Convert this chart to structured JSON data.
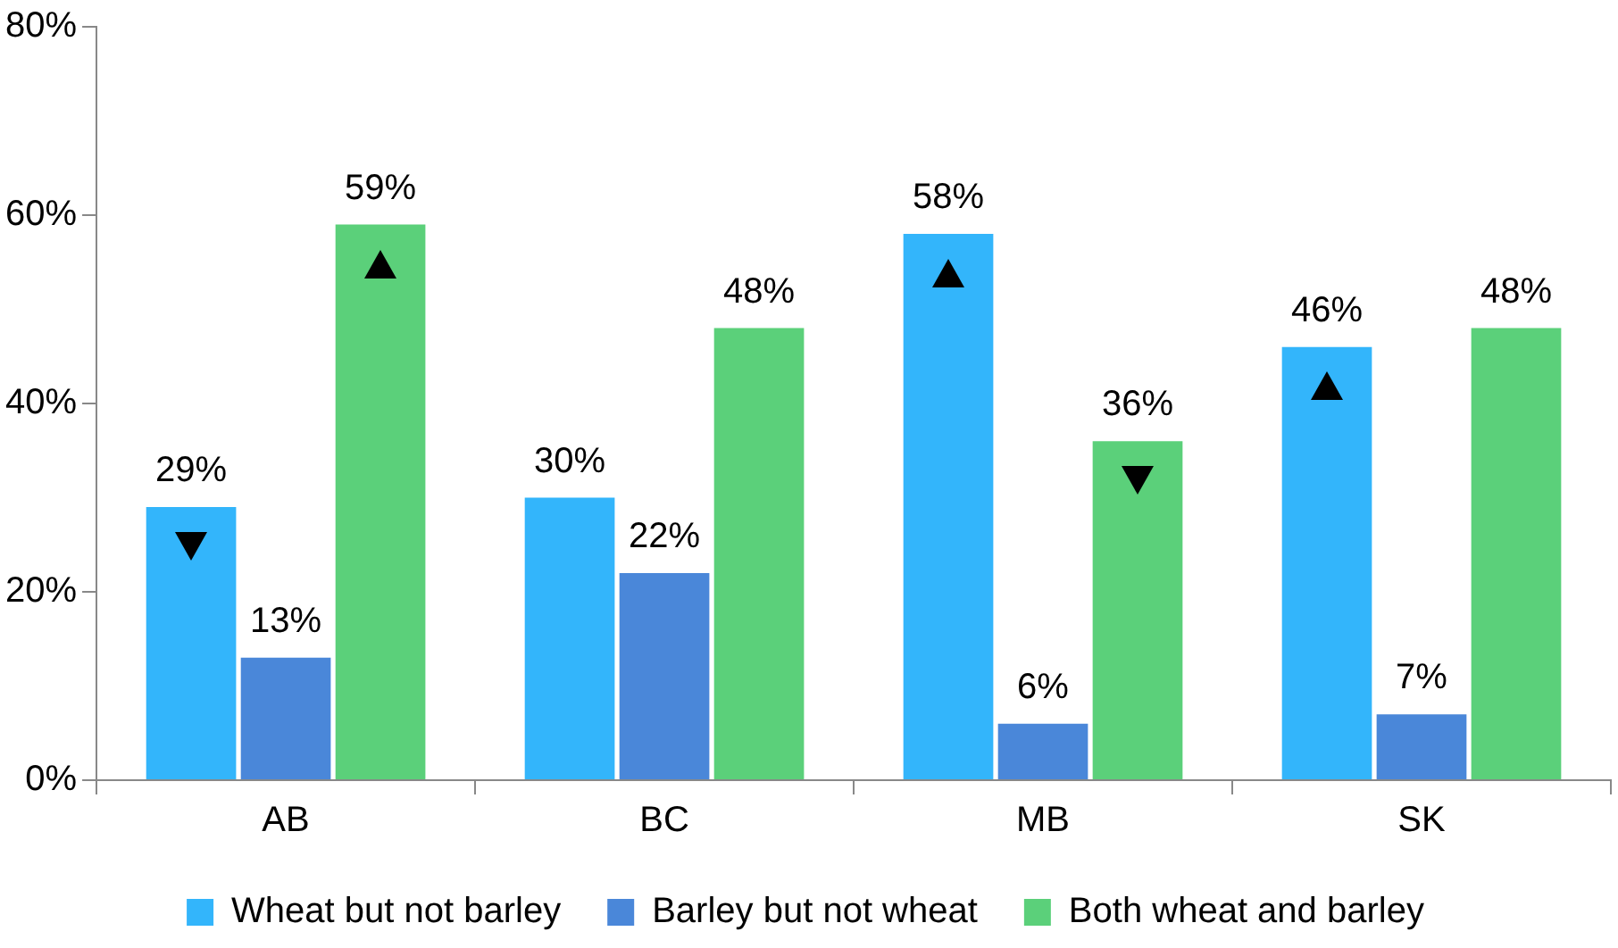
{
  "chart_data": {
    "type": "bar",
    "categories": [
      "AB",
      "BC",
      "MB",
      "SK"
    ],
    "series": [
      {
        "name": "Wheat but not barley",
        "color": "#33b5fb",
        "values": [
          29,
          30,
          58,
          46
        ],
        "value_labels": [
          "29%",
          "30%",
          "58%",
          "46%"
        ]
      },
      {
        "name": "Barley but not wheat",
        "color": "#4a87d9",
        "values": [
          13,
          22,
          6,
          7
        ],
        "value_labels": [
          "13%",
          "22%",
          "6%",
          "7%"
        ]
      },
      {
        "name": "Both wheat and barley",
        "color": "#5bd07a",
        "values": [
          59,
          48,
          36,
          48
        ],
        "value_labels": [
          "59%",
          "48%",
          "36%",
          "48%"
        ]
      }
    ],
    "ylim": [
      0,
      80
    ],
    "yticks": [
      {
        "value": 0,
        "label": "0%"
      },
      {
        "value": 20,
        "label": "20%"
      },
      {
        "value": 40,
        "label": "40%"
      },
      {
        "value": 60,
        "label": "60%"
      },
      {
        "value": 80,
        "label": "80%"
      }
    ],
    "grid": false,
    "legend": "bottom"
  }
}
